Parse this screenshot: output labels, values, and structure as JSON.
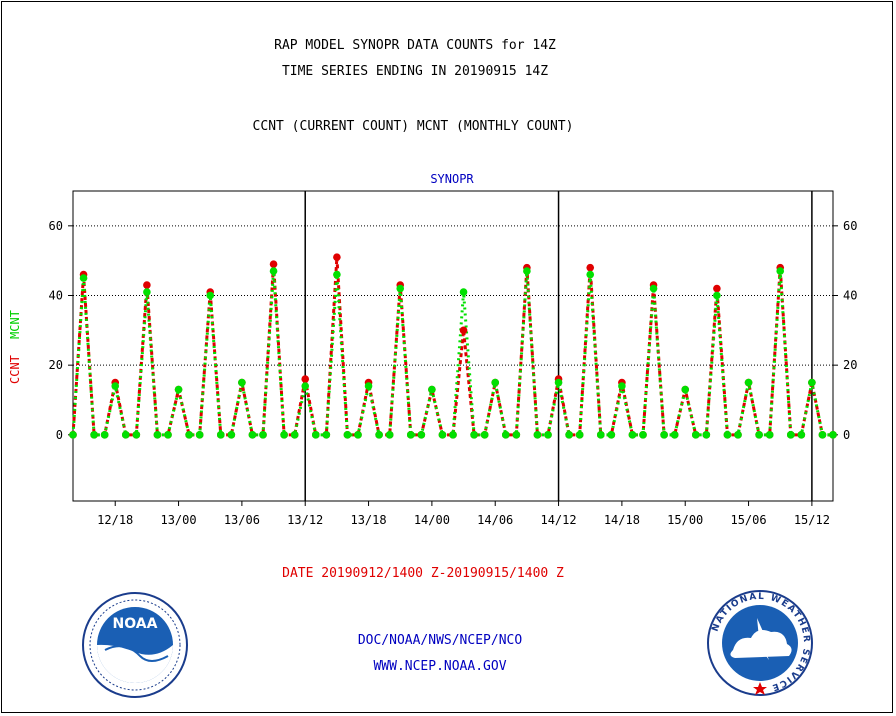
{
  "header": {
    "line1": "RAP MODEL SYNOPR DATA COUNTS for 14Z",
    "line2": "TIME SERIES ENDING IN 20190915 14Z",
    "line3": "CCNT (CURRENT COUNT) MCNT (MONTHLY COUNT)"
  },
  "footer": {
    "date_range": "DATE 20190912/1400 Z-20190915/1400 Z",
    "org": "DOC/NOAA/NWS/NCEP/NCO",
    "url": "WWW.NCEP.NOAA.GOV"
  },
  "logos": {
    "left": "NOAA",
    "right_ring": "NATIONAL WEATHER SERVICE"
  },
  "colors": {
    "ccnt": "#e00000",
    "mcnt": "#00e000",
    "text_blue": "#0000c0"
  },
  "chart_data": {
    "type": "line",
    "title": "SYNOPR",
    "ylabel_ccnt": "CCNT",
    "ylabel_mcnt": "MCNT",
    "ylim": [
      -19,
      70
    ],
    "yticks": [
      0,
      20,
      40,
      60
    ],
    "grid": true,
    "x_hours_range": [
      0,
      72
    ],
    "xtick_hours": [
      4,
      10,
      16,
      22,
      28,
      34,
      40,
      46,
      52,
      58,
      64,
      70
    ],
    "xtick_labels": [
      "12/18",
      "13/00",
      "13/06",
      "13/12",
      "13/18",
      "14/00",
      "14/06",
      "14/12",
      "14/18",
      "15/00",
      "15/06",
      "15/12"
    ],
    "day_boundaries_hours": [
      22,
      46,
      70
    ],
    "series": [
      {
        "name": "CCNT",
        "x": [
          0,
          1,
          2,
          3,
          4,
          5,
          6,
          7,
          8,
          9,
          10,
          11,
          12,
          13,
          14,
          15,
          16,
          17,
          18,
          19,
          20,
          21,
          22,
          23,
          24,
          25,
          26,
          27,
          28,
          29,
          30,
          31,
          32,
          33,
          34,
          35,
          36,
          37,
          38,
          39,
          40,
          41,
          42,
          43,
          44,
          45,
          46,
          47,
          48,
          49,
          50,
          51,
          52,
          53,
          54,
          55,
          56,
          57,
          58,
          59,
          60,
          61,
          62,
          63,
          64,
          65,
          66,
          67,
          68,
          69,
          70,
          71,
          72
        ],
        "values": [
          0,
          46,
          0,
          0,
          15,
          0,
          0,
          43,
          0,
          0,
          13,
          0,
          0,
          41,
          0,
          0,
          15,
          0,
          0,
          49,
          0,
          0,
          16,
          0,
          0,
          51,
          0,
          0,
          15,
          0,
          0,
          43,
          0,
          0,
          13,
          0,
          0,
          30,
          0,
          0,
          15,
          0,
          0,
          48,
          0,
          0,
          16,
          0,
          0,
          48,
          0,
          0,
          15,
          0,
          0,
          43,
          0,
          0,
          13,
          0,
          0,
          42,
          0,
          0,
          15,
          0,
          0,
          48,
          0,
          0,
          15,
          0,
          0
        ]
      },
      {
        "name": "MCNT",
        "x": [
          0,
          1,
          2,
          3,
          4,
          5,
          6,
          7,
          8,
          9,
          10,
          11,
          12,
          13,
          14,
          15,
          16,
          17,
          18,
          19,
          20,
          21,
          22,
          23,
          24,
          25,
          26,
          27,
          28,
          29,
          30,
          31,
          32,
          33,
          34,
          35,
          36,
          37,
          38,
          39,
          40,
          41,
          42,
          43,
          44,
          45,
          46,
          47,
          48,
          49,
          50,
          51,
          52,
          53,
          54,
          55,
          56,
          57,
          58,
          59,
          60,
          61,
          62,
          63,
          64,
          65,
          66,
          67,
          68,
          69,
          70,
          71,
          72
        ],
        "values": [
          0,
          45,
          0,
          0,
          14,
          0,
          0,
          41,
          0,
          0,
          13,
          0,
          0,
          40,
          0,
          0,
          15,
          0,
          0,
          47,
          0,
          0,
          14,
          0,
          0,
          46,
          0,
          0,
          14,
          0,
          0,
          42,
          0,
          0,
          13,
          0,
          0,
          41,
          0,
          0,
          15,
          0,
          0,
          47,
          0,
          0,
          15,
          0,
          0,
          46,
          0,
          0,
          14,
          0,
          0,
          42,
          0,
          0,
          13,
          0,
          0,
          40,
          0,
          0,
          15,
          0,
          0,
          47,
          0,
          0,
          15,
          0,
          0
        ]
      }
    ]
  }
}
